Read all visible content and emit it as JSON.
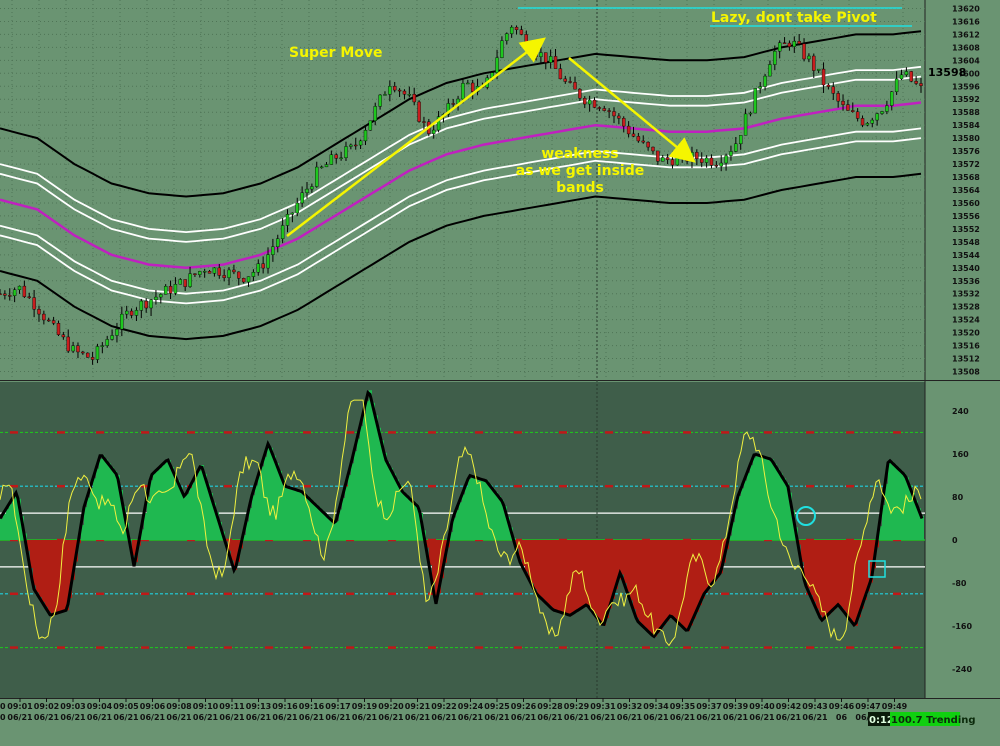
{
  "chart_data": [
    {
      "type": "candlestick",
      "title": "",
      "ylim": [
        13506,
        13622
      ],
      "yticks": [
        13508,
        13512,
        13516,
        13520,
        13524,
        13528,
        13532,
        13536,
        13540,
        13544,
        13548,
        13552,
        13556,
        13560,
        13564,
        13568,
        13572,
        13576,
        13580,
        13584,
        13588,
        13592,
        13596,
        13600,
        13604,
        13608,
        13612,
        13616,
        13620
      ],
      "last_price": "13598",
      "annotations": {
        "super_move": "Super Move",
        "weakness_1": "weakness",
        "weakness_2": "as we get inside",
        "weakness_3": "bands",
        "lazy": "Lazy, dont take Pivot"
      },
      "colors": {
        "up": "#1ec81e",
        "down": "#c81e1e",
        "wick": "#000000",
        "mid_band": "#c020c0",
        "inner_band": "#ffffff",
        "outer_band": "#000000",
        "arrow": "#f5f500",
        "pivot_line": "#20e0e0"
      },
      "mid_band": [
        [
          0,
          13561
        ],
        [
          4,
          13558
        ],
        [
          8,
          13550
        ],
        [
          12,
          13544
        ],
        [
          16,
          13541
        ],
        [
          20,
          13540
        ],
        [
          24,
          13541
        ],
        [
          28,
          13544
        ],
        [
          32,
          13549
        ],
        [
          36,
          13556
        ],
        [
          40,
          13563
        ],
        [
          44,
          13570
        ],
        [
          48,
          13575
        ],
        [
          52,
          13578
        ],
        [
          56,
          13580
        ],
        [
          60,
          13582
        ],
        [
          64,
          13584
        ],
        [
          68,
          13583
        ],
        [
          72,
          13582
        ],
        [
          76,
          13582
        ],
        [
          80,
          13583
        ],
        [
          84,
          13586
        ],
        [
          88,
          13588
        ],
        [
          92,
          13590
        ],
        [
          96,
          13590
        ],
        [
          99,
          13591
        ]
      ],
      "band_offsets": [
        8,
        11,
        22
      ],
      "prices": [
        [
          0,
          13532
        ],
        [
          2,
          13534
        ],
        [
          4,
          13528
        ],
        [
          6,
          13520
        ],
        [
          8,
          13514
        ],
        [
          10,
          13512
        ],
        [
          12,
          13520
        ],
        [
          14,
          13527
        ],
        [
          16,
          13530
        ],
        [
          18,
          13533
        ],
        [
          20,
          13536
        ],
        [
          22,
          13540
        ],
        [
          24,
          13539
        ],
        [
          26,
          13537
        ],
        [
          28,
          13540
        ],
        [
          30,
          13550
        ],
        [
          32,
          13560
        ],
        [
          34,
          13569
        ],
        [
          36,
          13574
        ],
        [
          38,
          13577
        ],
        [
          40,
          13587
        ],
        [
          42,
          13598
        ],
        [
          44,
          13592
        ],
        [
          46,
          13582
        ],
        [
          48,
          13588
        ],
        [
          50,
          13597
        ],
        [
          52,
          13594
        ],
        [
          54,
          13610
        ],
        [
          55,
          13615
        ],
        [
          57,
          13608
        ],
        [
          59,
          13604
        ],
        [
          61,
          13596
        ],
        [
          63,
          13592
        ],
        [
          65,
          13590
        ],
        [
          67,
          13584
        ],
        [
          69,
          13578
        ],
        [
          71,
          13573
        ],
        [
          73,
          13574
        ],
        [
          75,
          13574
        ],
        [
          77,
          13573
        ],
        [
          79,
          13578
        ],
        [
          81,
          13592
        ],
        [
          83,
          13606
        ],
        [
          85,
          13610
        ],
        [
          87,
          13604
        ],
        [
          89,
          13595
        ],
        [
          91,
          13588
        ],
        [
          93,
          13585
        ],
        [
          95,
          13590
        ],
        [
          97,
          13600
        ],
        [
          99,
          13595
        ]
      ]
    },
    {
      "type": "oscillator",
      "ylim": [
        -290,
        290
      ],
      "yticks": [
        240,
        160,
        80,
        0,
        -80,
        -160,
        -240
      ],
      "levels": [
        {
          "value": 200,
          "color": "#20c020"
        },
        {
          "value": 100,
          "color": "#20d0e0"
        },
        {
          "value": 50,
          "color": "#ffffff"
        },
        {
          "value": 0,
          "color": "#20c020"
        },
        {
          "value": -50,
          "color": "#ffffff"
        },
        {
          "value": -100,
          "color": "#20d0e0"
        },
        {
          "value": -200,
          "color": "#20c020"
        }
      ],
      "histogram": [
        [
          0,
          40
        ],
        [
          2,
          90
        ],
        [
          4,
          -90
        ],
        [
          6,
          -140
        ],
        [
          8,
          -130
        ],
        [
          10,
          60
        ],
        [
          12,
          160
        ],
        [
          14,
          120
        ],
        [
          16,
          -50
        ],
        [
          18,
          120
        ],
        [
          20,
          150
        ],
        [
          22,
          80
        ],
        [
          24,
          140
        ],
        [
          26,
          40
        ],
        [
          28,
          -60
        ],
        [
          30,
          80
        ],
        [
          32,
          180
        ],
        [
          34,
          100
        ],
        [
          36,
          90
        ],
        [
          38,
          60
        ],
        [
          40,
          30
        ],
        [
          42,
          150
        ],
        [
          44,
          280
        ],
        [
          46,
          150
        ],
        [
          48,
          90
        ],
        [
          50,
          60
        ],
        [
          52,
          -120
        ],
        [
          54,
          40
        ],
        [
          56,
          120
        ],
        [
          58,
          110
        ],
        [
          60,
          70
        ],
        [
          62,
          -40
        ],
        [
          64,
          -100
        ],
        [
          66,
          -130
        ],
        [
          68,
          -140
        ],
        [
          70,
          -120
        ],
        [
          72,
          -160
        ],
        [
          74,
          -60
        ],
        [
          76,
          -150
        ],
        [
          78,
          -180
        ],
        [
          80,
          -140
        ],
        [
          82,
          -170
        ],
        [
          84,
          -100
        ],
        [
          86,
          -60
        ],
        [
          88,
          80
        ],
        [
          90,
          160
        ],
        [
          92,
          150
        ],
        [
          94,
          100
        ],
        [
          96,
          -80
        ],
        [
          98,
          -150
        ],
        [
          100,
          -120
        ],
        [
          102,
          -160
        ],
        [
          104,
          -70
        ],
        [
          106,
          150
        ],
        [
          108,
          120
        ],
        [
          110,
          40
        ]
      ],
      "colors": {
        "pos": "#1fb850",
        "neg": "#b01e14",
        "line": "#000000",
        "signal": "#f0f040",
        "circle": "#20e0e0"
      }
    }
  ],
  "time_axis": {
    "times": [
      "09:01",
      "09:02",
      "09:03",
      "09:04",
      "09:05",
      "09:06",
      "09:08",
      "09:10",
      "09:11",
      "09:13",
      "09:16",
      "09:16",
      "09:17",
      "09:19",
      "09:20",
      "09:21",
      "09:22",
      "09:24",
      "09:25",
      "09:26",
      "09:28",
      "09:29",
      "09:31",
      "09:32",
      "09:34",
      "09:35",
      "09:37",
      "09:39",
      "09:40",
      "09:42",
      "09:43",
      "09:46",
      "09:47",
      "09:49"
    ],
    "dates": [
      "06/21",
      "06/21",
      "06/21",
      "06/21",
      "06/21",
      "06/21",
      "06/21",
      "06/21",
      "06/21",
      "06/21",
      "06/21",
      "06/21",
      "06/21",
      "06/21",
      "06/21",
      "06/21",
      "06/21",
      "06/21",
      "06/21",
      "06/21",
      "06/21",
      "06/21",
      "06/21",
      "06/21",
      "06/21",
      "06/21",
      "06/21",
      "06/21",
      "06/21",
      "06/21",
      "06/21",
      "06",
      "06/21",
      "06/21"
    ],
    "first_time": "0",
    "first_date": "0"
  },
  "status": {
    "time": "0:12",
    "label": "100.7 Trending"
  }
}
